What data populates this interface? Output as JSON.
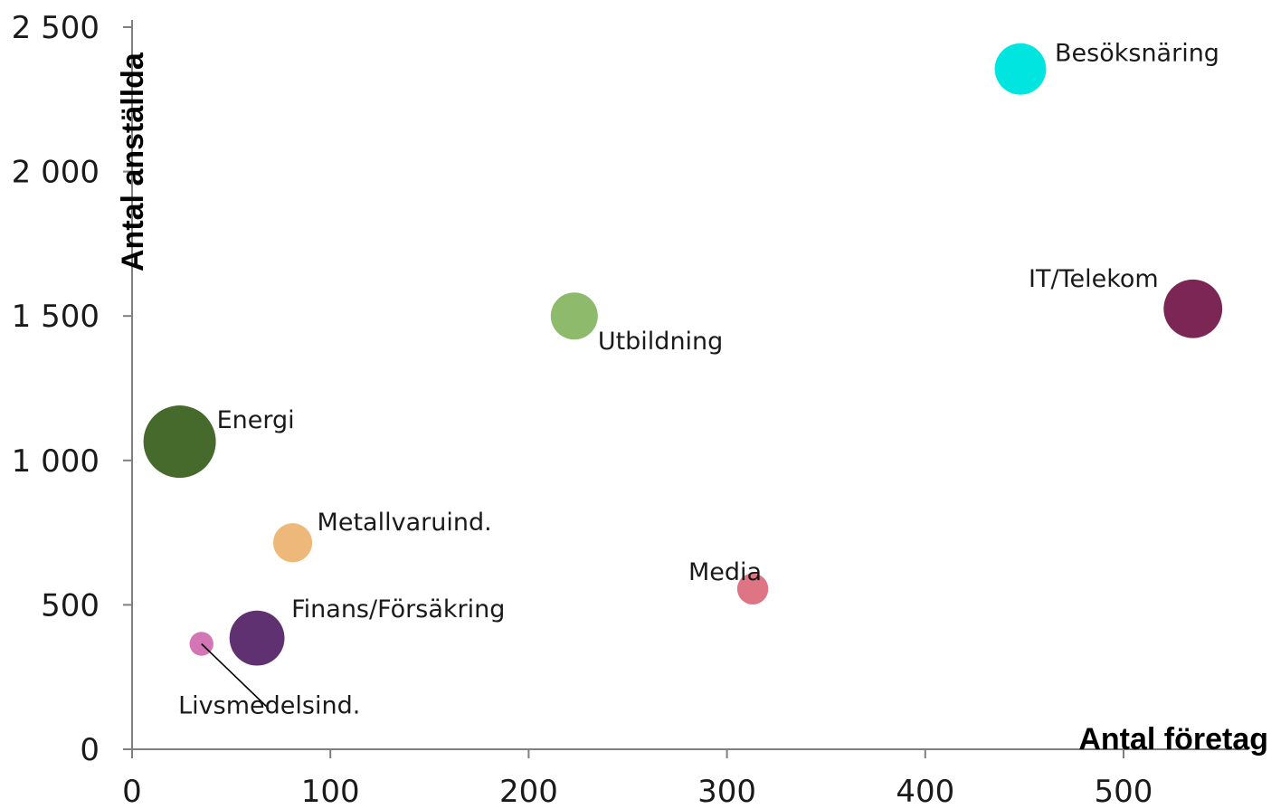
{
  "chart_data": {
    "type": "scatter",
    "xlabel": "Antal företag",
    "ylabel": "Antal anställda",
    "xlim": [
      0,
      550
    ],
    "ylim": [
      0,
      2500
    ],
    "x_ticks": [
      {
        "value": 0,
        "label": "0"
      },
      {
        "value": 100,
        "label": "100"
      },
      {
        "value": 200,
        "label": "200"
      },
      {
        "value": 300,
        "label": "300"
      },
      {
        "value": 400,
        "label": "400"
      },
      {
        "value": 500,
        "label": "500"
      }
    ],
    "y_ticks": [
      {
        "value": 0,
        "label": "0"
      },
      {
        "value": 500,
        "label": "500"
      },
      {
        "value": 1000,
        "label": "1 000"
      },
      {
        "value": 1500,
        "label": "1 500"
      },
      {
        "value": 2000,
        "label": "2 000"
      },
      {
        "value": 2500,
        "label": "2 500"
      }
    ],
    "grid": false,
    "points": [
      {
        "label": "Besöksnäring",
        "x": 448,
        "y": 2355,
        "size_relative": 0.71,
        "color": "#00E5E0"
      },
      {
        "label": "IT/Telekom",
        "x": 535,
        "y": 1525,
        "size_relative": 0.81,
        "color": "#7B2654"
      },
      {
        "label": "Utbildning",
        "x": 223,
        "y": 1500,
        "size_relative": 0.65,
        "color": "#8DBB6B"
      },
      {
        "label": "Energi",
        "x": 24,
        "y": 1065,
        "size_relative": 1.0,
        "color": "#456A2C"
      },
      {
        "label": "Metallvaruind.",
        "x": 81,
        "y": 715,
        "size_relative": 0.54,
        "color": "#EDB879"
      },
      {
        "label": "Media",
        "x": 313,
        "y": 555,
        "size_relative": 0.43,
        "color": "#DD7584"
      },
      {
        "label": "Finans/Försäkring",
        "x": 63,
        "y": 385,
        "size_relative": 0.76,
        "color": "#603171"
      },
      {
        "label": "Livsmedelsind.",
        "x": 35,
        "y": 365,
        "size_relative": 0.33,
        "color": "#D476B5"
      }
    ]
  }
}
